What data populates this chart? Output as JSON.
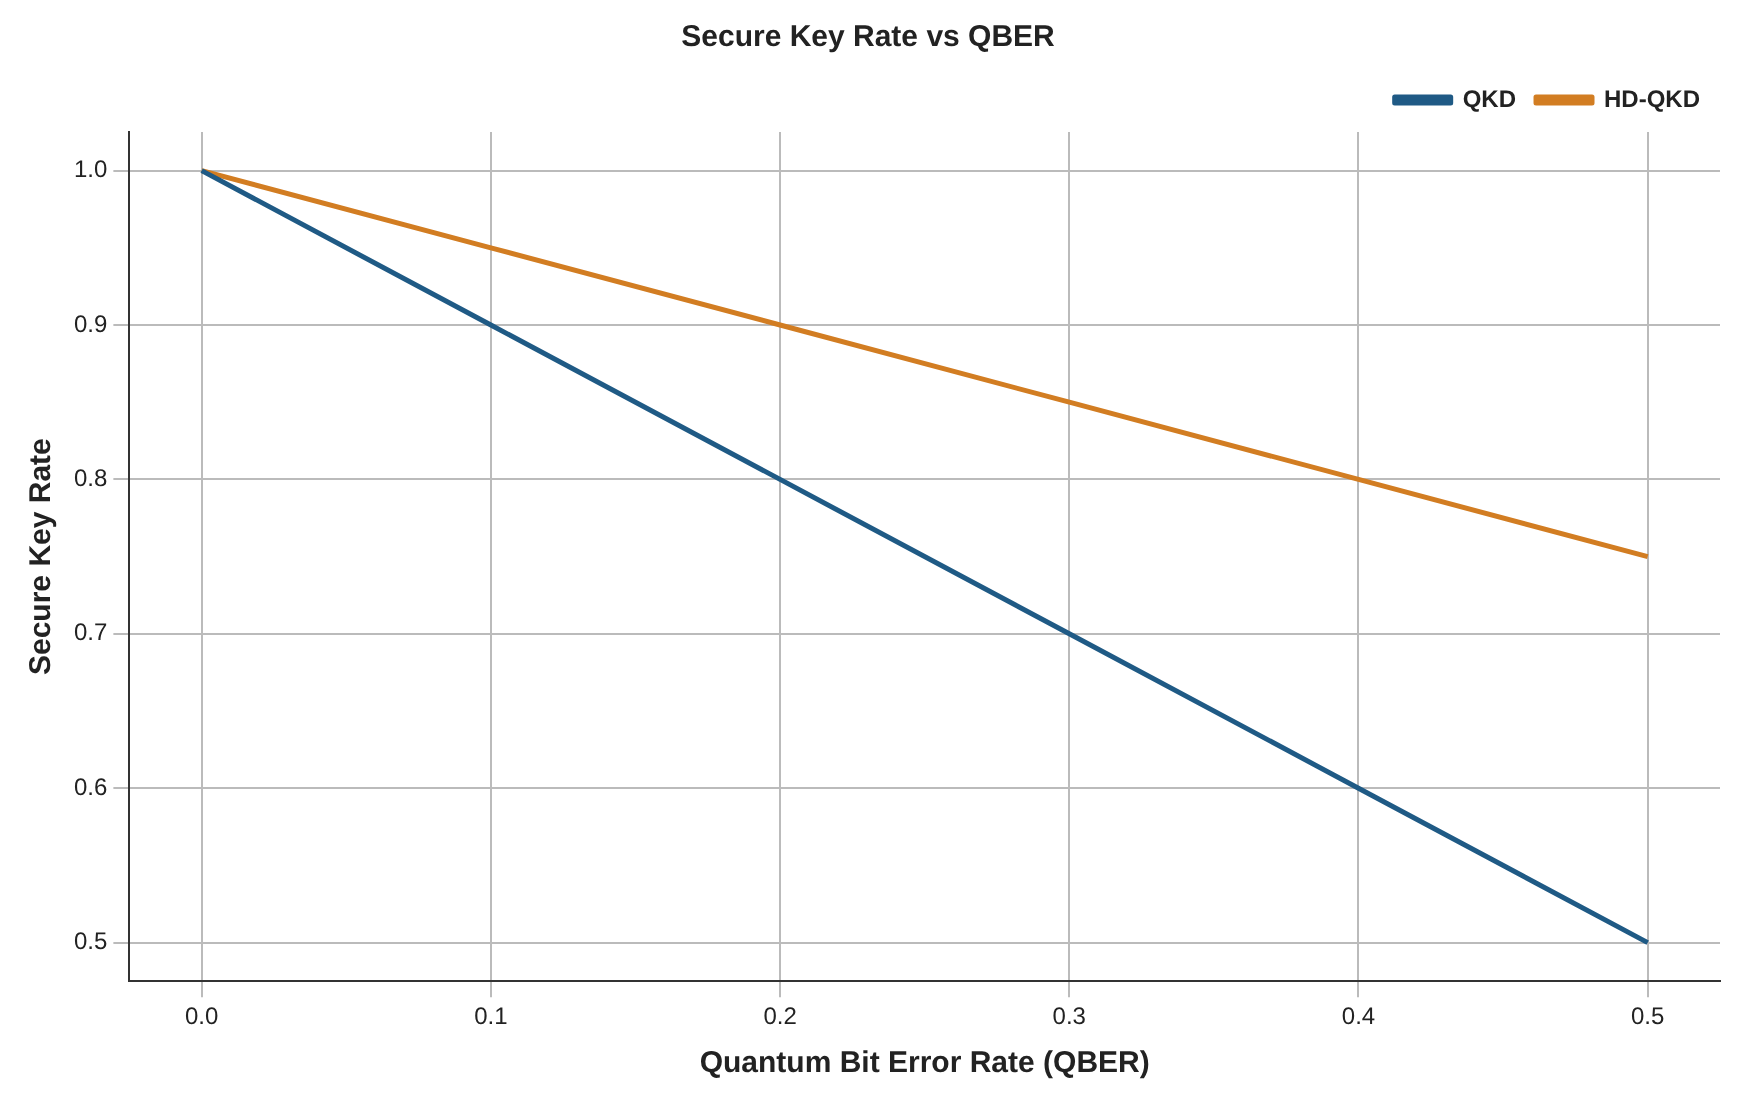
{
  "chart_data": {
    "type": "line",
    "title": "Secure Key Rate vs QBER",
    "xlabel": "Quantum Bit Error Rate (QBER)",
    "ylabel": "Secure Key Rate",
    "x": [
      0,
      0.1,
      0.2,
      0.3,
      0.4,
      0.5
    ],
    "series": [
      {
        "name": "QKD",
        "color": "#1f5a85",
        "values": [
          1,
          0.9,
          0.8,
          0.7,
          0.6,
          0.5
        ]
      },
      {
        "name": "HD-QKD",
        "color": "#d27d22",
        "values": [
          1,
          0.95,
          0.9,
          0.85,
          0.8,
          0.75
        ]
      }
    ],
    "xlim": [
      -0.025,
      0.525
    ],
    "xticks": [
      {
        "value": 0,
        "label": "0.0"
      },
      0.1,
      0.2,
      0.3,
      0.4,
      0.5
    ],
    "ylim": [
      0.475,
      1.025
    ],
    "yticks": [
      0.5,
      0.6,
      0.7,
      0.8,
      0.9,
      {
        "value": 1,
        "label": "1.0"
      }
    ],
    "grid": true,
    "legend": "top right",
    "marker": "none",
    "line_style": "solid"
  }
}
